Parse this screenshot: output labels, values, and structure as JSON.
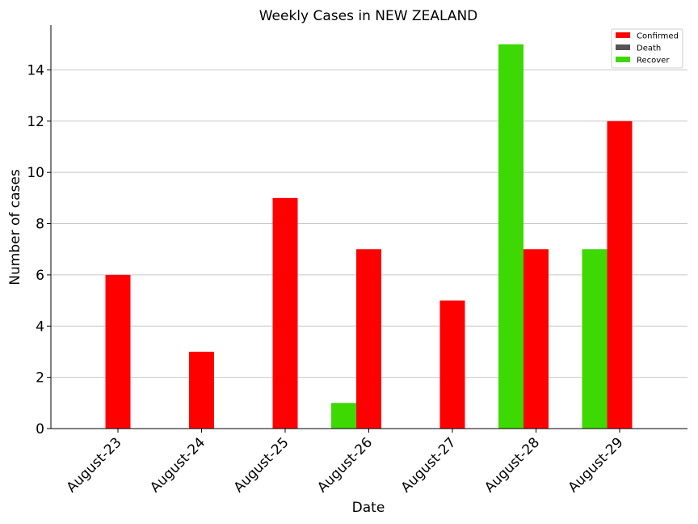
{
  "chart_data": {
    "type": "bar",
    "title": "Weekly Cases in NEW ZEALAND",
    "xlabel": "Date",
    "ylabel": "Number of cases",
    "categories": [
      "August-23",
      "August-24",
      "August-25",
      "August-26",
      "August-27",
      "August-28",
      "August-29"
    ],
    "series": [
      {
        "name": "Confirmed",
        "color": "#ff0000",
        "values": [
          6,
          3,
          9,
          7,
          5,
          7,
          12
        ]
      },
      {
        "name": "Death",
        "color": "#555555",
        "values": [
          0,
          0,
          0,
          0,
          0,
          0,
          0
        ]
      },
      {
        "name": "Recover",
        "color": "#3ed802",
        "values": [
          0,
          0,
          0,
          1,
          0,
          15,
          7
        ]
      }
    ],
    "ylim": [
      0,
      15.75
    ],
    "yticks": [
      0,
      2,
      4,
      6,
      8,
      10,
      12,
      14
    ],
    "grid": "horizontal",
    "legend_position": "top-right"
  }
}
